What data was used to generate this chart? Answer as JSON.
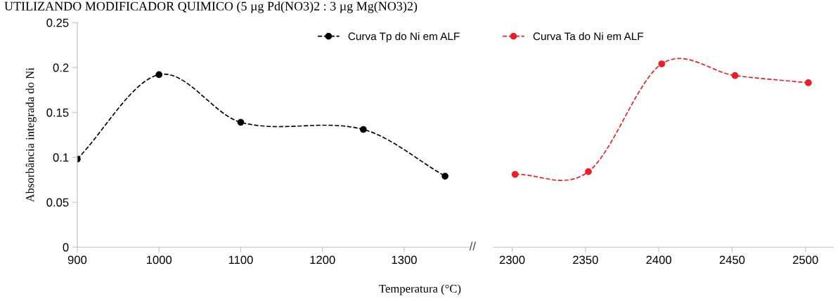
{
  "chart_data": [
    {
      "type": "line",
      "title": "UTILIZANDO MODIFICADOR QUIMICO (5 µg Pd(NO3)2 : 3 µg Mg(NO3)2)",
      "xlabel": "Temperatura (°C)",
      "ylabel": "Absorbância integrada do Ni",
      "x": [
        900,
        1000,
        1100,
        1250,
        1350
      ],
      "xlim": [
        900,
        1380
      ],
      "xticks": [
        900,
        1000,
        1100,
        1200,
        1300
      ],
      "ylim": [
        0,
        0.25
      ],
      "yticks": [
        0,
        0.05,
        0.1,
        0.15,
        0.2,
        0.25
      ],
      "grid": false,
      "legend": "top right",
      "marker": "circle",
      "line_style": "dashed",
      "series": [
        {
          "name": "Curva Tp do Ni em ALF",
          "color": "#000000",
          "values": [
            0.098,
            0.192,
            0.139,
            0.131,
            0.079
          ]
        }
      ]
    },
    {
      "type": "line",
      "annotations": [
        "//"
      ],
      "x": [
        2302,
        2352,
        2402,
        2452,
        2502
      ],
      "xlim": [
        2287,
        2519
      ],
      "xticks": [
        2300,
        2350,
        2400,
        2450,
        2500
      ],
      "ylim": [
        0,
        0.25
      ],
      "tick_labels": "x",
      "grid": false,
      "legend": "top left",
      "marker": "circle",
      "line_style": "dashed",
      "series": [
        {
          "name": "Curva Ta do Ni em ALF",
          "color": "#ee1c25",
          "values": [
            0.081,
            0.084,
            0.204,
            0.191,
            0.183
          ]
        }
      ]
    }
  ]
}
